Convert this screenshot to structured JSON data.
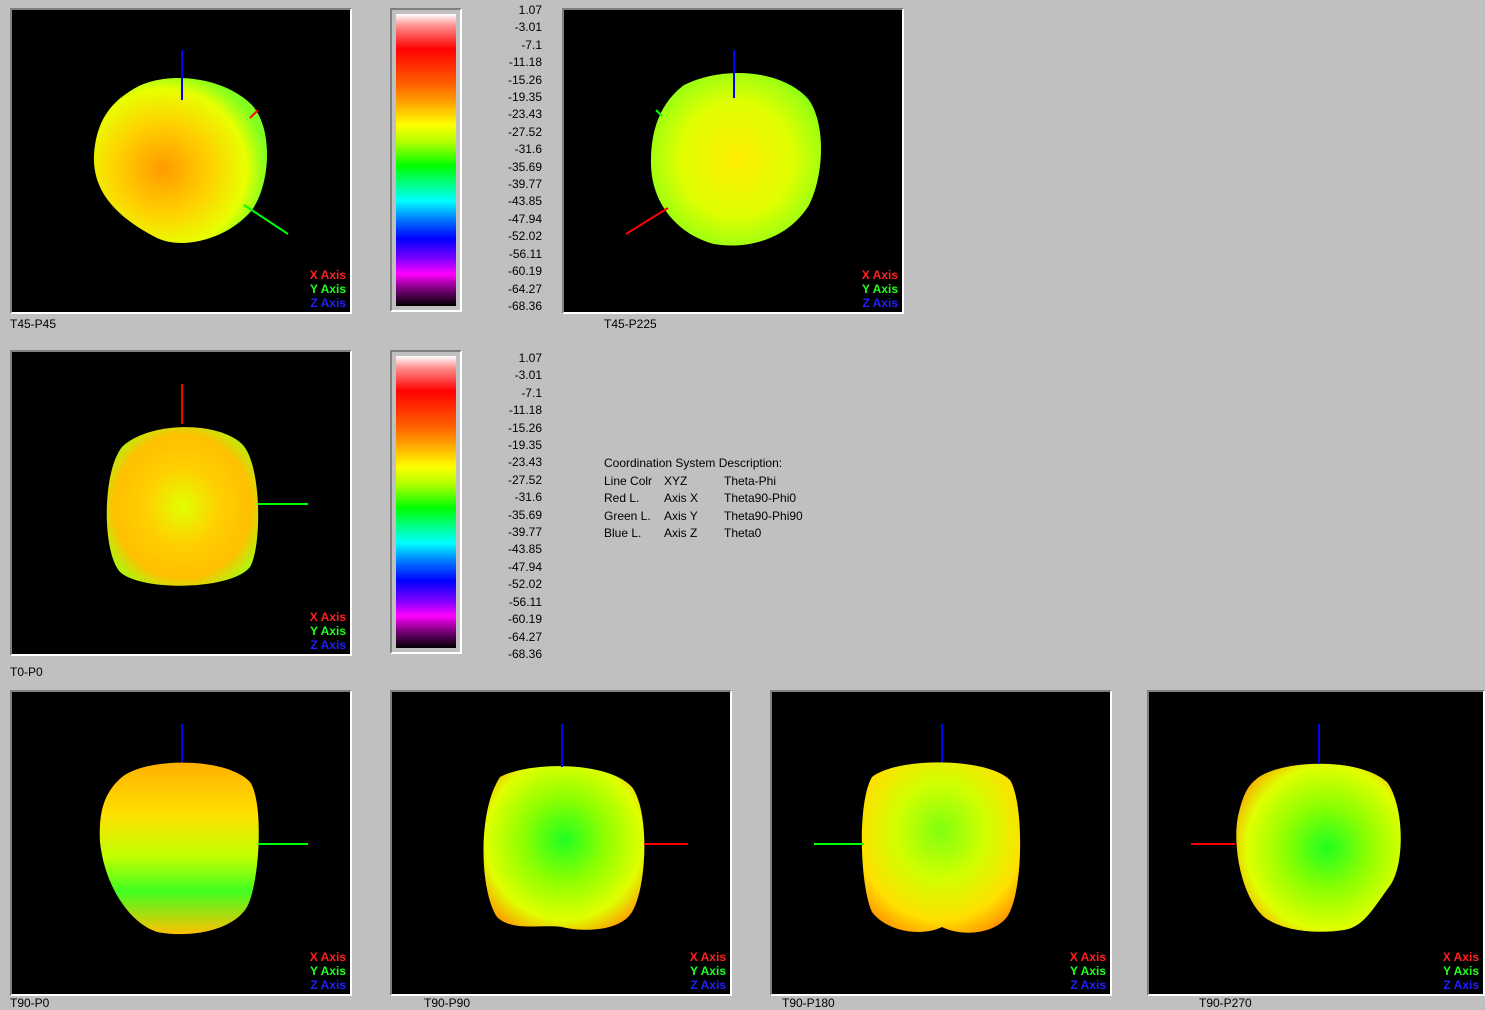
{
  "viewers": [
    {
      "id": "t45p45",
      "caption": "T45-P45"
    },
    {
      "id": "t45p225",
      "caption": "T45-P225"
    },
    {
      "id": "t0p0",
      "caption": "T0-P0"
    },
    {
      "id": "t90p0",
      "caption": "T90-P0"
    },
    {
      "id": "t90p90",
      "caption": "T90-P90"
    },
    {
      "id": "t90p180",
      "caption": "T90-P180"
    },
    {
      "id": "t90p270",
      "caption": "T90-P270"
    }
  ],
  "legend": {
    "x": "X Axis",
    "y": "Y Axis",
    "z": "Z Axis"
  },
  "colors": {
    "x_axis": "#ff0000",
    "y_axis": "#00ff00",
    "z_axis": "#0000ff",
    "background": "#c0c0c0"
  },
  "scale_ticks": [
    "1.07",
    "-3.01",
    "-7.1",
    "-11.18",
    "-15.26",
    "-19.35",
    "-23.43",
    "-27.52",
    "-31.6",
    "-35.69",
    "-39.77",
    "-43.85",
    "-47.94",
    "-52.02",
    "-56.11",
    "-60.19",
    "-64.27",
    "-68.36"
  ],
  "coordination": {
    "title": "Coordination System Description:",
    "header": {
      "a": "Line Colr",
      "b": "XYZ",
      "c": "Theta-Phi"
    },
    "rows": [
      {
        "a": "Red L.",
        "b": "Axis X",
        "c": "Theta90-Phi0"
      },
      {
        "a": "Green L.",
        "b": "Axis Y",
        "c": "Theta90-Phi90"
      },
      {
        "a": "Blue L.",
        "b": "Axis Z",
        "c": "Theta0"
      }
    ]
  }
}
